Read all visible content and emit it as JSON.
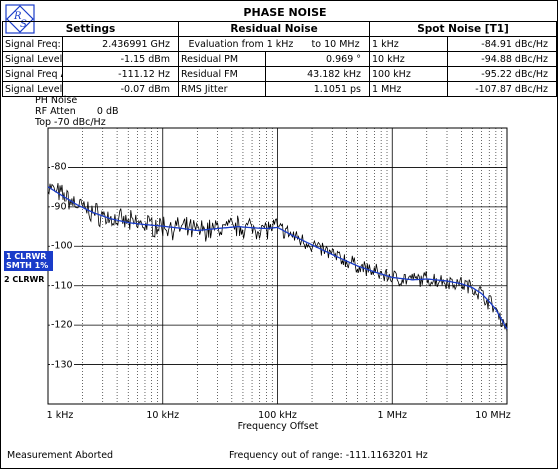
{
  "title": "PHASE NOISE",
  "headers": {
    "settings": "Settings",
    "residual": "Residual Noise",
    "spot": "Spot Noise [T1]"
  },
  "settings_rows": [
    {
      "label": "Signal Freq:",
      "value": "2.436991 GHz"
    },
    {
      "label": "Signal Level:",
      "value": "-1.15 dBm"
    },
    {
      "label": "Signal Freq Δ:",
      "value": "-111.12 Hz"
    },
    {
      "label": "Signal Level Δ:",
      "value": "-0.07 dBm"
    }
  ],
  "residual": {
    "evaluation_prefix": "Evaluation from 1 kHz",
    "evaluation_to": "to",
    "evaluation_end": "10 MHz",
    "rows": [
      {
        "label": "Residual PM",
        "value": "0.969 °"
      },
      {
        "label": "Residual FM",
        "value": "43.182 kHz"
      },
      {
        "label": "RMS Jitter",
        "value": "1.1051 ps"
      }
    ]
  },
  "spot_rows": [
    {
      "offset": "1 kHz",
      "value": "-84.91 dBc/Hz"
    },
    {
      "offset": "10 kHz",
      "value": "-94.88 dBc/Hz"
    },
    {
      "offset": "100 kHz",
      "value": "-95.22 dBc/Hz"
    },
    {
      "offset": "1 MHz",
      "value": "-107.87 dBc/Hz"
    }
  ],
  "trace_info": {
    "mode": "PH Noise",
    "rf_atten": "RF Atten",
    "rf_atten_value": "0 dB",
    "top": "Top  -70 dBc/Hz"
  },
  "traces": {
    "t1_line1": "1 CLRWR",
    "t1_line2": "SMTH 1%",
    "t2": "2 CLRWR"
  },
  "status": {
    "left": "Measurement Aborted",
    "center": "Frequency out of range: -111.1163201 Hz"
  },
  "colors": {
    "trace_raw": "#000000",
    "trace_smooth": "#1a3cc9",
    "trace1_badge": "#1a3cc9"
  },
  "chart_data": {
    "type": "line",
    "x_scale": "log",
    "xlabel": "Frequency Offset",
    "x_ticks": [
      "1 kHz",
      "10 kHz",
      "100 kHz",
      "1 MHz",
      "10 MHz"
    ],
    "x_tick_values": [
      1000,
      10000,
      100000,
      1000000,
      10000000
    ],
    "xlim": [
      1000,
      10000000
    ],
    "ylim": [
      -140,
      -70
    ],
    "y_ticks": [
      "-80",
      "-90",
      "-100",
      "-110",
      "-120",
      "-130"
    ],
    "y_tick_values": [
      -80,
      -90,
      -100,
      -110,
      -120,
      -130
    ],
    "unit": "dBc/Hz",
    "grid": true,
    "series": [
      {
        "name": "1 CLRWR SMTH 1%",
        "x": [
          1000,
          1300,
          1800,
          2500,
          3500,
          5000,
          7000,
          10000,
          15000,
          20000,
          30000,
          45000,
          60000,
          80000,
          100000,
          130000,
          180000,
          250000,
          350000,
          500000,
          700000,
          1000000,
          1500000,
          2000000,
          3000000,
          4000000,
          5000000,
          6000000,
          7000000,
          8000000,
          10000000
        ],
        "y": [
          -84.9,
          -87,
          -89.5,
          -91.5,
          -93,
          -94,
          -94.5,
          -94.9,
          -95.5,
          -96,
          -95.5,
          -95,
          -95.3,
          -95.5,
          -95.2,
          -97,
          -99,
          -101,
          -103,
          -105,
          -106.5,
          -107.9,
          -108.5,
          -108.3,
          -108.8,
          -109.5,
          -110.5,
          -112,
          -114,
          -116,
          -121
        ]
      }
    ]
  }
}
